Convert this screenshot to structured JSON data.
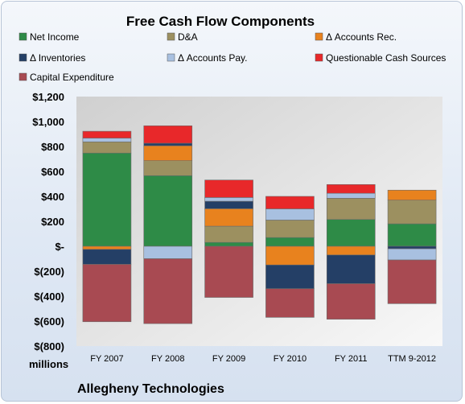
{
  "chart_data": {
    "type": "bar",
    "stacked": true,
    "title": "Free Cash Flow Components",
    "units_label": "millions",
    "company": "Allegheny Technologies",
    "legend_position": "top",
    "grid": false,
    "ylim": [
      -800,
      1200
    ],
    "ytick_values": [
      1200,
      1000,
      800,
      600,
      400,
      200,
      0,
      -200,
      -400,
      -600,
      -800
    ],
    "ytick_labels": [
      "$1,200",
      "$1,000",
      "$800",
      "$600",
      "$400",
      "$200",
      "$-",
      "$(200)",
      "$(400)",
      "$(600)",
      "$(800)"
    ],
    "categories": [
      "FY 2007",
      "FY 2008",
      "FY 2009",
      "FY 2010",
      "FY 2011",
      "TTM 9-2012"
    ],
    "series": [
      {
        "name": "Net Income",
        "color": "#2e8b47",
        "values": [
          747,
          566,
          31,
          70,
          215,
          180
        ]
      },
      {
        "name": "D&A",
        "color": "#9c9060",
        "values": [
          90,
          120,
          130,
          140,
          170,
          190
        ]
      },
      {
        "name": "Δ Accounts Rec.",
        "color": "#e8821e",
        "values": [
          -25,
          120,
          140,
          -150,
          -70,
          80
        ]
      },
      {
        "name": "Δ Inventories",
        "color": "#243f66",
        "values": [
          -120,
          20,
          60,
          -190,
          -230,
          -20
        ]
      },
      {
        "name": "Δ Accounts Pay.",
        "color": "#a8c0e0",
        "values": [
          30,
          -100,
          30,
          90,
          40,
          -90
        ]
      },
      {
        "name": "Questionable Cash Sources",
        "color": "#e8282a",
        "values": [
          55,
          140,
          140,
          100,
          70,
          0
        ]
      },
      {
        "name": "Capital Expenditure",
        "color": "#a84a52",
        "values": [
          -460,
          -520,
          -410,
          -230,
          -285,
          -350
        ]
      }
    ]
  }
}
